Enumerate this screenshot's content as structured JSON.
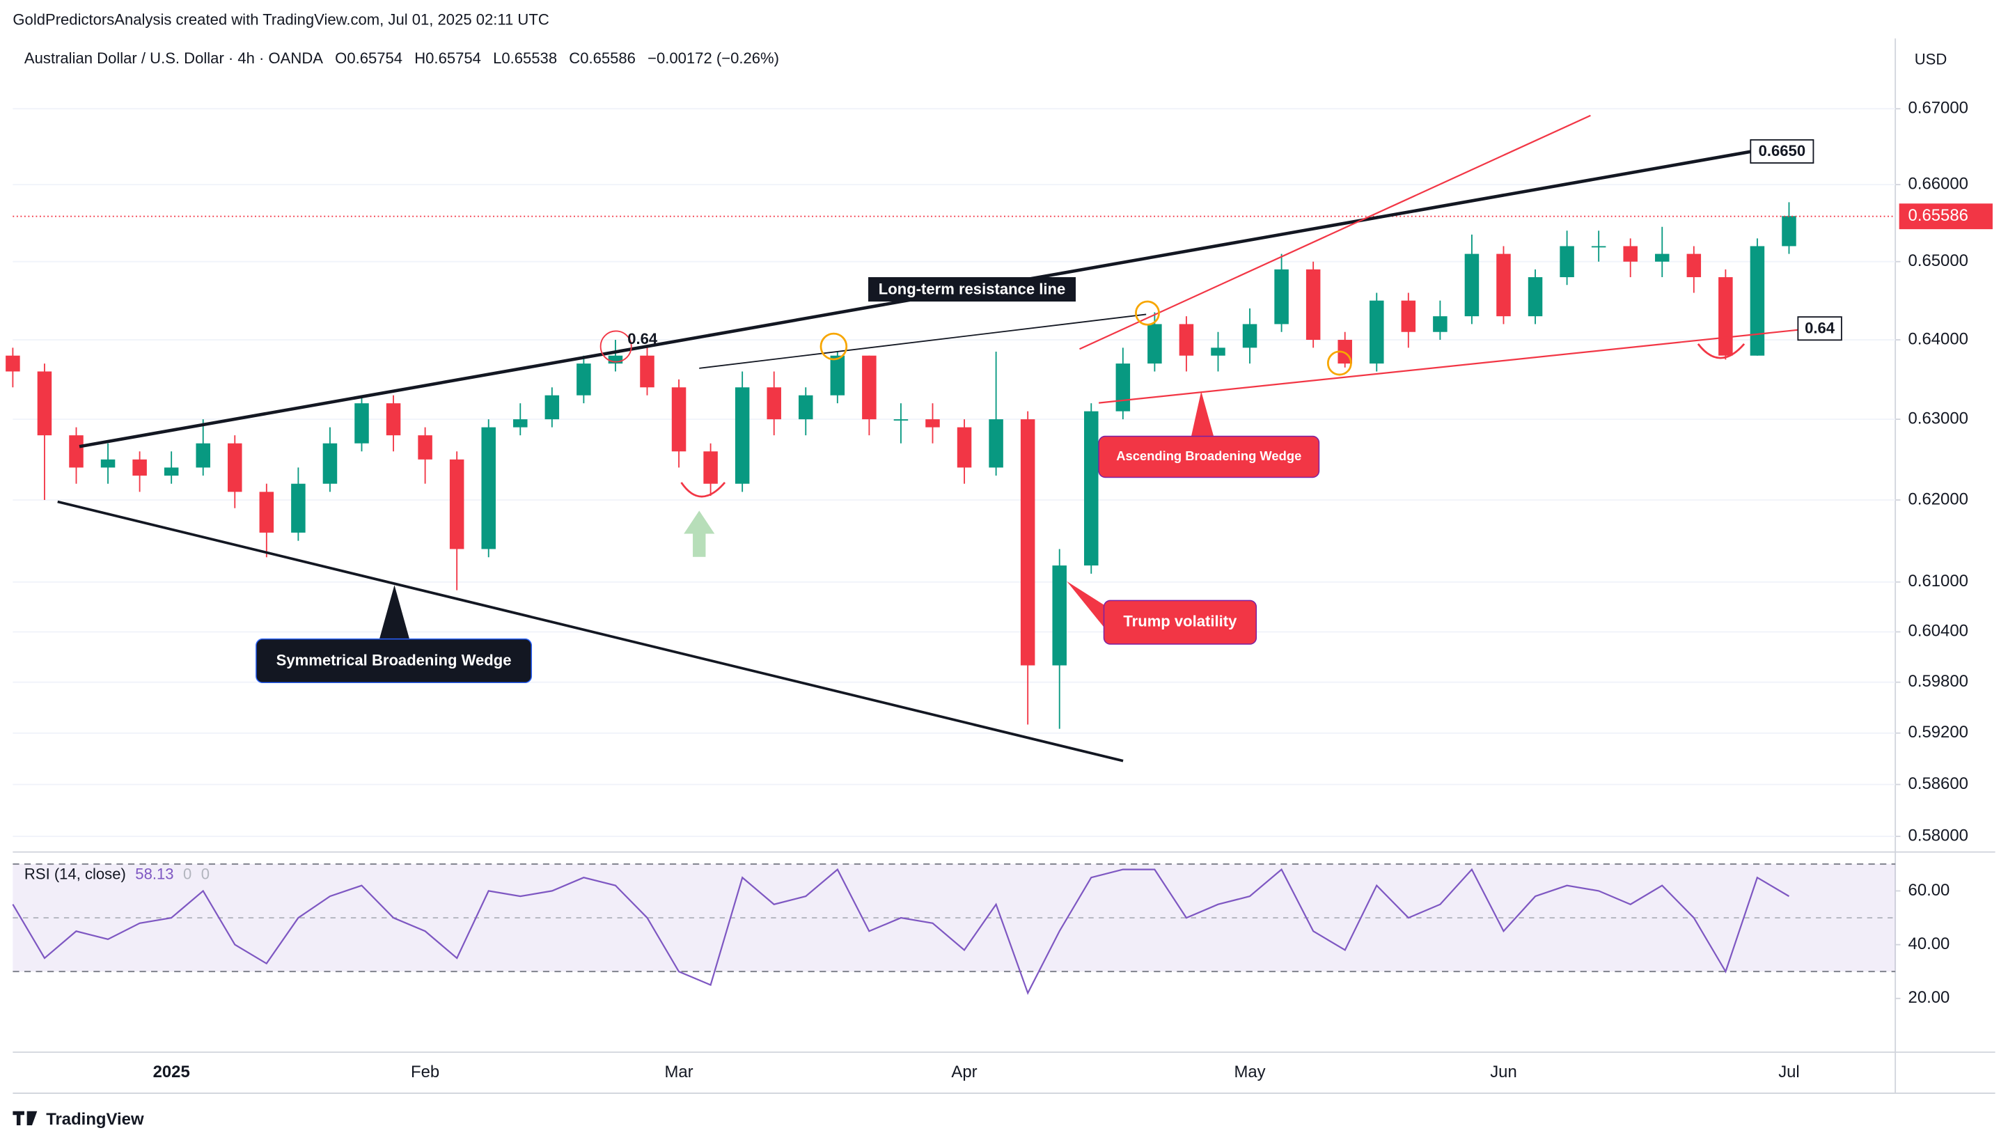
{
  "header": {
    "credit": "GoldPredictorsAnalysis created with TradingView.com, Jul 01, 2025 02:11 UTC",
    "symbol": "Australian Dollar / U.S. Dollar · 4h · OANDA",
    "ohlc": [
      {
        "key": "O",
        "value": 0.65754
      },
      {
        "key": "H",
        "value": 0.65754
      },
      {
        "key": "L",
        "value": 0.65538
      },
      {
        "key": "C",
        "value": 0.65586
      }
    ],
    "change": "−0.00172 (−0.26%)",
    "currency": "USD",
    "footer": "TradingView"
  },
  "chart_data": [
    {
      "type": "candlestick",
      "log_scale": true,
      "categories": [
        null,
        null,
        null,
        null,
        null,
        "2025",
        null,
        null,
        null,
        null,
        null,
        null,
        null,
        "Feb",
        null,
        null,
        null,
        null,
        null,
        null,
        null,
        "Mar",
        null,
        null,
        null,
        null,
        null,
        null,
        null,
        null,
        "Apr",
        null,
        null,
        null,
        null,
        null,
        null,
        null,
        null,
        "May",
        null,
        null,
        null,
        null,
        null,
        null,
        null,
        "Jun",
        null,
        null,
        null,
        null,
        null,
        null,
        null,
        null,
        "Jul"
      ],
      "open": [
        0.638,
        0.636,
        0.628,
        0.624,
        0.625,
        0.623,
        0.624,
        0.627,
        0.621,
        0.616,
        0.622,
        0.627,
        0.632,
        0.628,
        0.625,
        0.614,
        0.629,
        0.63,
        0.633,
        0.637,
        0.638,
        0.634,
        0.626,
        0.622,
        0.634,
        0.63,
        0.633,
        0.638,
        0.63,
        0.63,
        0.629,
        0.624,
        0.63,
        0.6,
        0.612,
        0.631,
        0.637,
        0.642,
        0.638,
        0.639,
        0.642,
        0.649,
        0.64,
        0.637,
        0.645,
        0.641,
        0.643,
        0.651,
        0.643,
        0.648,
        0.652,
        0.652,
        0.65,
        0.651,
        0.648,
        0.638,
        0.652
      ],
      "high": [
        0.639,
        0.637,
        0.629,
        0.627,
        0.626,
        0.626,
        0.63,
        0.628,
        0.622,
        0.624,
        0.629,
        0.633,
        0.633,
        0.629,
        0.626,
        0.63,
        0.632,
        0.634,
        0.638,
        0.64,
        0.639,
        0.635,
        0.627,
        0.636,
        0.636,
        0.634,
        0.6385,
        0.638,
        0.632,
        0.632,
        0.63,
        0.6385,
        0.631,
        0.614,
        0.632,
        0.639,
        0.6435,
        0.643,
        0.641,
        0.644,
        0.651,
        0.65,
        0.641,
        0.646,
        0.646,
        0.645,
        0.6535,
        0.652,
        0.649,
        0.654,
        0.654,
        0.653,
        0.6545,
        0.652,
        0.649,
        0.653,
        0.6577
      ],
      "low": [
        0.634,
        0.62,
        0.622,
        0.622,
        0.621,
        0.622,
        0.623,
        0.619,
        0.613,
        0.615,
        0.621,
        0.626,
        0.626,
        0.622,
        0.609,
        0.613,
        0.628,
        0.629,
        0.632,
        0.636,
        0.633,
        0.624,
        0.6205,
        0.621,
        0.628,
        0.628,
        0.632,
        0.628,
        0.627,
        0.627,
        0.622,
        0.623,
        0.593,
        0.5925,
        0.611,
        0.63,
        0.636,
        0.636,
        0.636,
        0.637,
        0.641,
        0.639,
        0.6365,
        0.636,
        0.639,
        0.64,
        0.642,
        0.642,
        0.642,
        0.647,
        0.65,
        0.648,
        0.648,
        0.646,
        0.6375,
        0.638,
        0.651
      ],
      "close": [
        0.636,
        0.628,
        0.624,
        0.625,
        0.623,
        0.624,
        0.627,
        0.621,
        0.616,
        0.622,
        0.627,
        0.632,
        0.628,
        0.625,
        0.614,
        0.629,
        0.63,
        0.633,
        0.637,
        0.638,
        0.634,
        0.626,
        0.622,
        0.634,
        0.63,
        0.633,
        0.638,
        0.63,
        0.63,
        0.629,
        0.624,
        0.63,
        0.6,
        0.612,
        0.631,
        0.637,
        0.642,
        0.638,
        0.639,
        0.642,
        0.649,
        0.64,
        0.637,
        0.645,
        0.641,
        0.643,
        0.651,
        0.643,
        0.648,
        0.652,
        0.652,
        0.65,
        0.651,
        0.648,
        0.638,
        0.652,
        0.6559
      ],
      "up_color": "#089981",
      "down_color": "#f23645",
      "ylim": [
        0.5785,
        0.6794
      ],
      "yticks": [
        {
          "value": 0.67,
          "label": "0.67000"
        },
        {
          "value": 0.66,
          "label": "0.66000"
        },
        {
          "value": 0.65,
          "label": "0.65000"
        },
        {
          "value": 0.64,
          "label": "0.64000"
        },
        {
          "value": 0.63,
          "label": "0.63000"
        },
        {
          "value": 0.62,
          "label": "0.62000"
        },
        {
          "value": 0.61,
          "label": "0.61000"
        },
        {
          "value": 0.604,
          "label": "0.60400"
        },
        {
          "value": 0.598,
          "label": "0.59800"
        },
        {
          "value": 0.592,
          "label": "0.59200"
        },
        {
          "value": 0.586,
          "label": "0.58600"
        },
        {
          "value": 0.58,
          "label": "0.58000"
        }
      ],
      "last_price": 0.65586,
      "annotations": [
        "Long-term resistance line",
        "Symmetrical Broadening Wedge",
        "Ascending Broadening Wedge",
        "Trump volatility"
      ],
      "level_labels": [
        "0.64",
        "0.6650",
        "0.64"
      ]
    },
    {
      "type": "line",
      "name": "RSI (14, close)",
      "last_value": 58.13,
      "extras": [
        "0",
        "0"
      ],
      "color": "#7e57c2",
      "values": [
        55,
        35,
        45,
        42,
        48,
        50,
        60,
        40,
        33,
        50,
        58,
        62,
        50,
        45,
        35,
        60,
        58,
        60,
        65,
        62,
        50,
        30,
        25,
        65,
        55,
        58,
        68,
        45,
        50,
        48,
        38,
        55,
        22,
        45,
        65,
        68,
        68,
        50,
        55,
        58,
        68,
        45,
        38,
        62,
        50,
        55,
        68,
        45,
        58,
        62,
        60,
        55,
        62,
        50,
        30,
        65,
        58
      ],
      "ylim": [
        0,
        74
      ],
      "band": [
        30,
        70
      ],
      "yticks": [
        {
          "value": 60,
          "label": "60.00"
        },
        {
          "value": 40,
          "label": "40.00"
        },
        {
          "value": 20,
          "label": "20.00"
        }
      ]
    }
  ]
}
